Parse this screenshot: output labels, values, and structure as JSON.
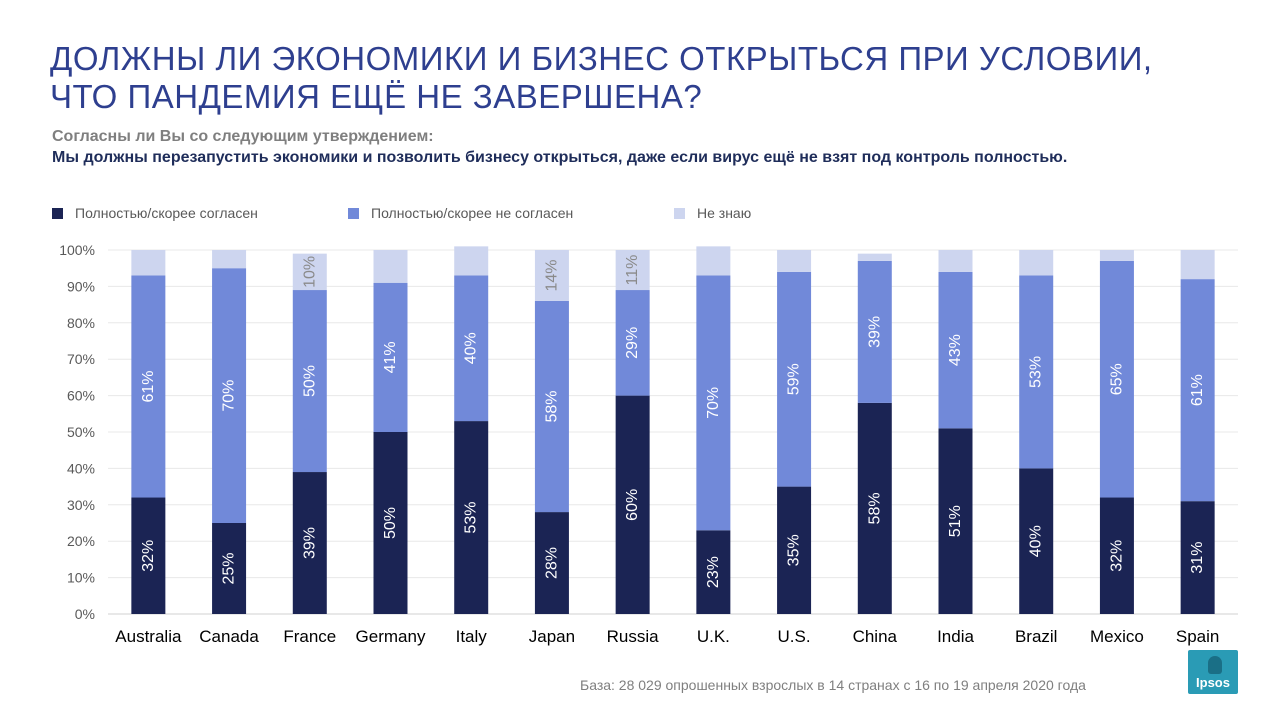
{
  "title_lines": [
    "ДОЛЖНЫ ЛИ ЭКОНОМИКИ И БИЗНЕС ОТКРЫТЬСЯ ПРИ УСЛОВИИ,",
    "ЧТО ПАНДЕМИЯ ЕЩЁ НЕ ЗАВЕРШЕНА?"
  ],
  "question": "Согласны ли Вы со следующим утверждением:",
  "statement": "Мы должны перезапустить экономики и позволить бизнесу открыться, даже если вирус ещё не взят под контроль полностью.",
  "footer": "База: 28 029 опрошенных  взрослых в 14 странах с 16 по 19 апреля 2020 года",
  "logo_text": "Ipsos",
  "chart_data": {
    "type": "bar",
    "stacked": true,
    "categories": [
      "Australia",
      "Canada",
      "France",
      "Germany",
      "Italy",
      "Japan",
      "Russia",
      "U.K.",
      "U.S.",
      "China",
      "India",
      "Brazil",
      "Mexico",
      "Spain"
    ],
    "series": [
      {
        "name": "Полностью/скорее согласен",
        "color": "#1b2454",
        "values": [
          32,
          25,
          39,
          50,
          53,
          28,
          60,
          23,
          35,
          58,
          51,
          40,
          32,
          31
        ],
        "labels": [
          "32%",
          "25%",
          "39%",
          "50%",
          "53%",
          "28%",
          "60%",
          "23%",
          "35%",
          "58%",
          "51%",
          "40%",
          "32%",
          "31%"
        ]
      },
      {
        "name": "Полностью/скорее не согласен",
        "color": "#7189d9",
        "values": [
          61,
          70,
          50,
          41,
          40,
          58,
          29,
          70,
          59,
          39,
          43,
          53,
          65,
          61
        ],
        "labels": [
          "61%",
          "70%",
          "50%",
          "41%",
          "40%",
          "58%",
          "29%",
          "70%",
          "59%",
          "39%",
          "43%",
          "53%",
          "65%",
          "61%"
        ]
      },
      {
        "name": "Не знаю",
        "color": "#cdd5ef",
        "values": [
          7,
          5,
          10,
          9,
          8,
          14,
          11,
          8,
          6,
          2,
          6,
          7,
          3,
          8
        ],
        "labels": [
          "",
          "",
          "10%",
          "",
          "",
          "14%",
          "11%",
          "",
          "",
          "",
          "",
          "",
          "",
          ""
        ]
      }
    ],
    "yticks": [
      "0%",
      "10%",
      "20%",
      "30%",
      "40%",
      "50%",
      "60%",
      "70%",
      "80%",
      "90%",
      "100%"
    ],
    "ylim": [
      0,
      100
    ],
    "grid": true,
    "legend_position": "top"
  }
}
